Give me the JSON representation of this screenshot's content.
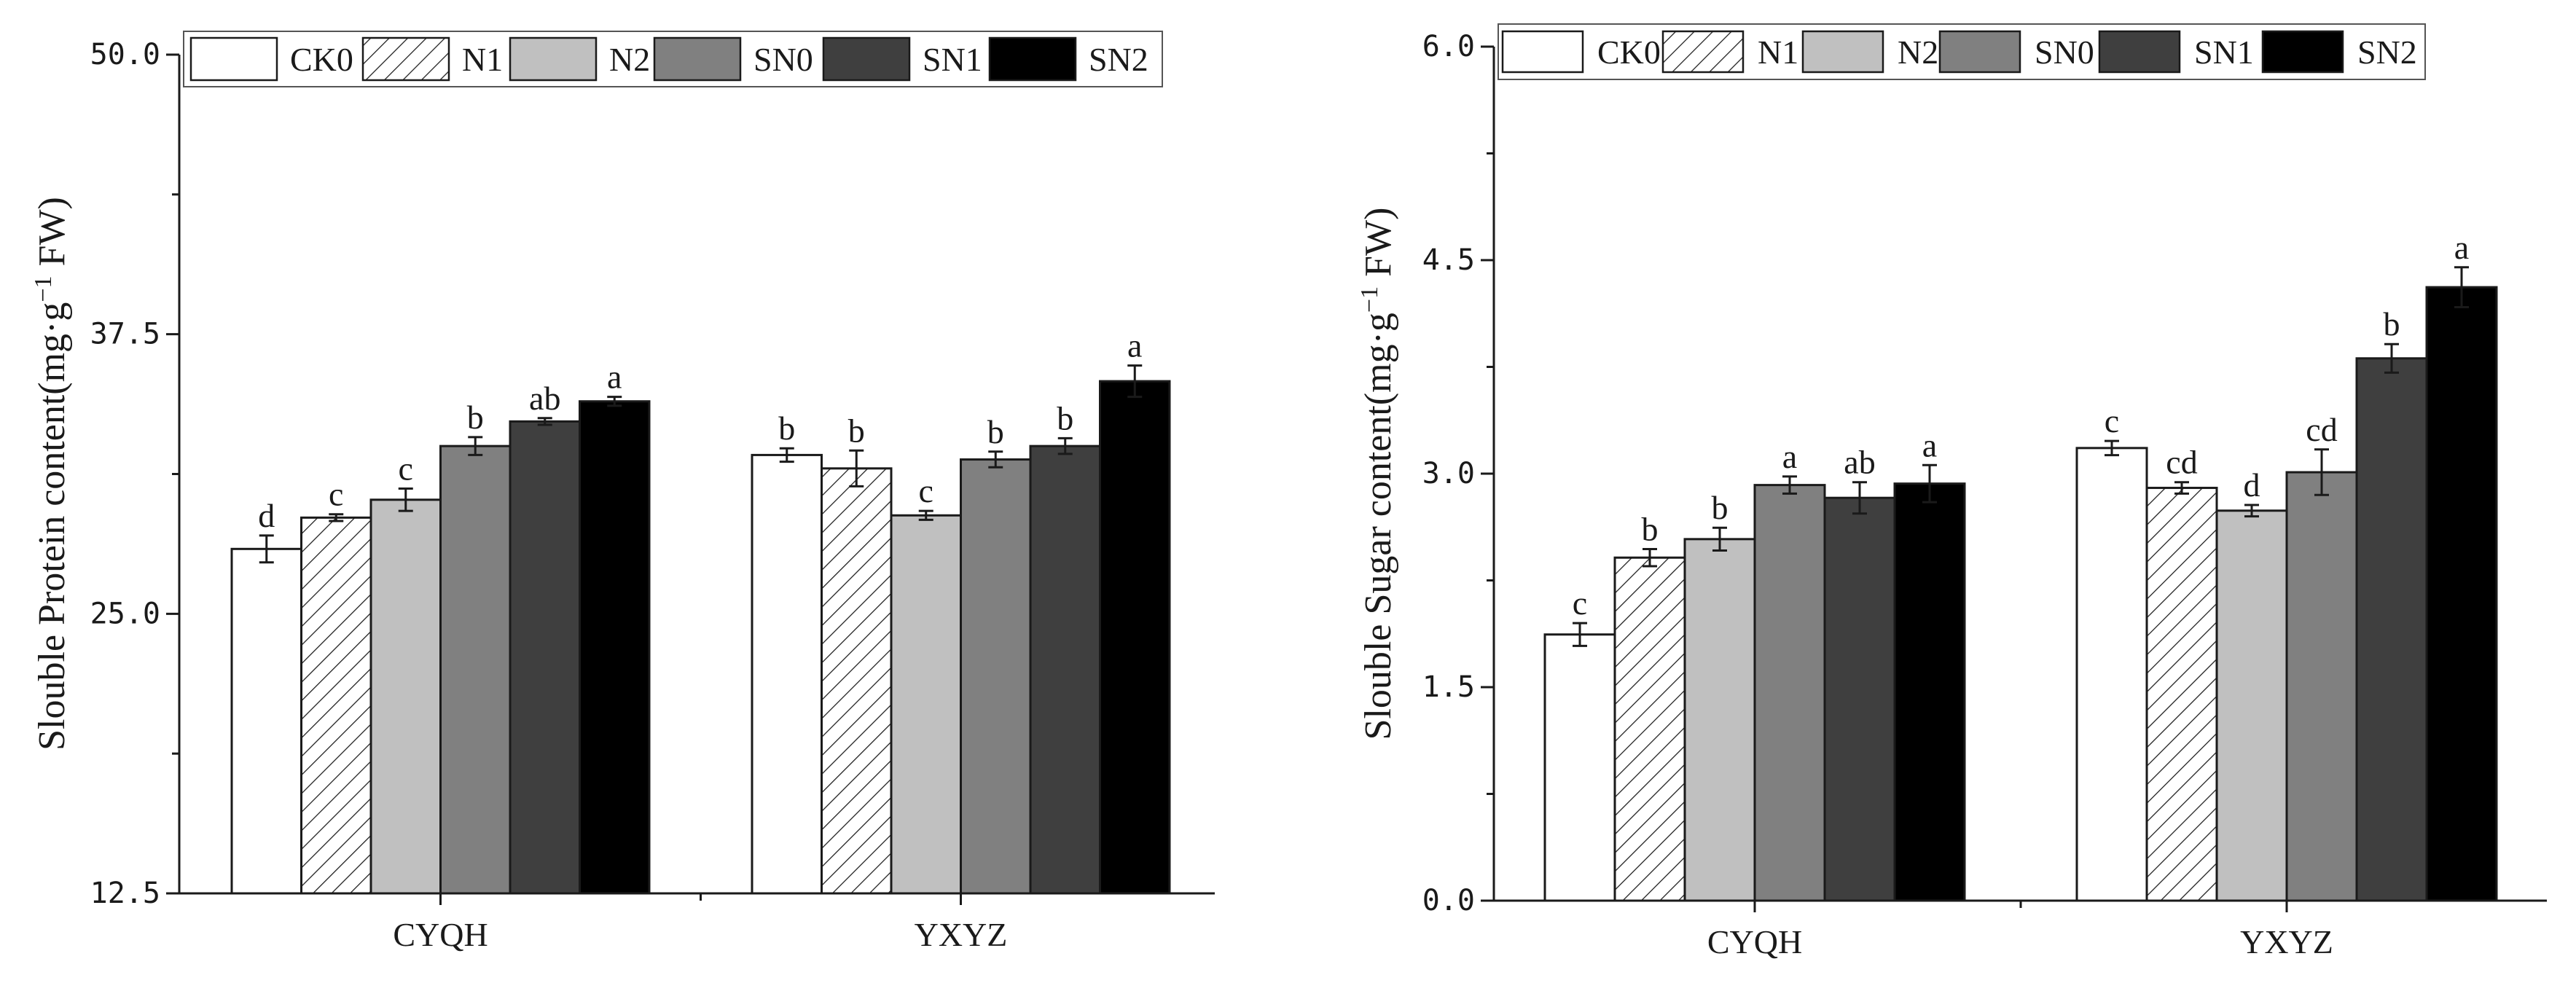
{
  "chart_data": [
    {
      "type": "bar",
      "ylabel_main": "Slouble Protein content(mg·g",
      "ylabel_sup": "−1",
      "ylabel_tail": " FW)",
      "categories": [
        "CYQH",
        "YXYZ"
      ],
      "ylim": [
        12.5,
        50.0
      ],
      "yticks": [
        "12.5",
        "25.0",
        "37.5",
        "50.0"
      ],
      "ytick_values": [
        12.5,
        25.0,
        37.5,
        50.0
      ],
      "minor_step": 6.25,
      "legend_position": "top",
      "series": [
        {
          "name": "CK0",
          "values": [
            27.9,
            32.1
          ],
          "errors": [
            0.6,
            0.3
          ],
          "labels": [
            "d",
            "b"
          ]
        },
        {
          "name": "N1",
          "values": [
            29.3,
            31.5
          ],
          "errors": [
            0.15,
            0.8
          ],
          "labels": [
            "c",
            "b"
          ]
        },
        {
          "name": "N2",
          "values": [
            30.1,
            29.4
          ],
          "errors": [
            0.5,
            0.2
          ],
          "labels": [
            "c",
            "c"
          ]
        },
        {
          "name": "SN0",
          "values": [
            32.5,
            31.9
          ],
          "errors": [
            0.4,
            0.35
          ],
          "labels": [
            "b",
            "b"
          ]
        },
        {
          "name": "SN1",
          "values": [
            33.6,
            32.5
          ],
          "errors": [
            0.15,
            0.35
          ],
          "labels": [
            "ab",
            "b"
          ]
        },
        {
          "name": "SN2",
          "values": [
            34.5,
            35.4
          ],
          "errors": [
            0.2,
            0.7
          ],
          "labels": [
            "a",
            "a"
          ]
        }
      ]
    },
    {
      "type": "bar",
      "ylabel_main": "Slouble Sugar content(mg·g",
      "ylabel_sup": "−1",
      "ylabel_tail": " FW)",
      "categories": [
        "CYQH",
        "YXYZ"
      ],
      "ylim": [
        0.0,
        6.0
      ],
      "yticks": [
        "0.0",
        "1.5",
        "3.0",
        "4.5",
        "6.0"
      ],
      "ytick_values": [
        0.0,
        1.5,
        3.0,
        4.5,
        6.0
      ],
      "minor_step": 0.75,
      "legend_position": "top",
      "series": [
        {
          "name": "CK0",
          "values": [
            1.87,
            3.18
          ],
          "errors": [
            0.08,
            0.05
          ],
          "labels": [
            "c",
            "c"
          ]
        },
        {
          "name": "N1",
          "values": [
            2.41,
            2.9
          ],
          "errors": [
            0.06,
            0.04
          ],
          "labels": [
            "b",
            "cd"
          ]
        },
        {
          "name": "N2",
          "values": [
            2.54,
            2.74
          ],
          "errors": [
            0.08,
            0.04
          ],
          "labels": [
            "b",
            "d"
          ]
        },
        {
          "name": "SN0",
          "values": [
            2.92,
            3.01
          ],
          "errors": [
            0.06,
            0.16
          ],
          "labels": [
            "a",
            "cd"
          ]
        },
        {
          "name": "SN1",
          "values": [
            2.83,
            3.81
          ],
          "errors": [
            0.11,
            0.1
          ],
          "labels": [
            "ab",
            "b"
          ]
        },
        {
          "name": "SN2",
          "values": [
            2.93,
            4.31
          ],
          "errors": [
            0.13,
            0.14
          ],
          "labels": [
            "a",
            "a"
          ]
        }
      ]
    }
  ],
  "series_styles": [
    {
      "fill": "#ffffff",
      "pattern": "none"
    },
    {
      "fill": "#ffffff",
      "pattern": "hatch"
    },
    {
      "fill": "#c0c0c0",
      "pattern": "none"
    },
    {
      "fill": "#808080",
      "pattern": "none"
    },
    {
      "fill": "#3f3f3f",
      "pattern": "none"
    },
    {
      "fill": "#000000",
      "pattern": "none"
    }
  ]
}
